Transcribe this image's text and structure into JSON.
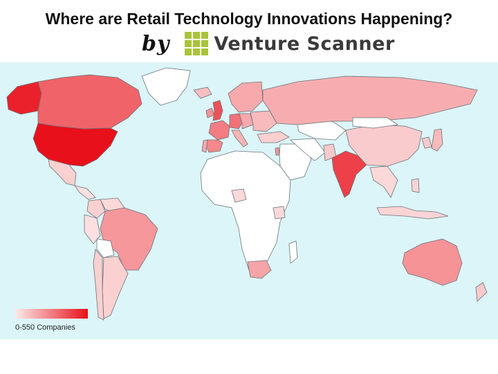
{
  "header": {
    "title": "Where are Retail Technology Innovations Happening?",
    "by": "by",
    "brand": "Venture Scanner"
  },
  "legend": {
    "label": "0-550 Companies",
    "low_color": "#fdeaea",
    "high_color": "#e8101a"
  },
  "colors": {
    "ocean": "#dcf5f8",
    "no_data": "#ffffff",
    "brand_green": "#a8c43b"
  },
  "map": {
    "regions": [
      {
        "name": "Greenland",
        "intensity": 0.0
      },
      {
        "name": "Alaska",
        "intensity": 0.92
      },
      {
        "name": "Canada",
        "intensity": 0.62
      },
      {
        "name": "United States",
        "intensity": 1.0
      },
      {
        "name": "Mexico",
        "intensity": 0.12
      },
      {
        "name": "Central America",
        "intensity": 0.05
      },
      {
        "name": "Colombia",
        "intensity": 0.12
      },
      {
        "name": "Venezuela",
        "intensity": 0.08
      },
      {
        "name": "Peru",
        "intensity": 0.05
      },
      {
        "name": "Brazil",
        "intensity": 0.38
      },
      {
        "name": "Bolivia",
        "intensity": 0.0
      },
      {
        "name": "Argentina",
        "intensity": 0.12
      },
      {
        "name": "Chile",
        "intensity": 0.12
      },
      {
        "name": "United Kingdom",
        "intensity": 0.7
      },
      {
        "name": "Ireland",
        "intensity": 0.4
      },
      {
        "name": "Iceland",
        "intensity": 0.2
      },
      {
        "name": "Scandinavia",
        "intensity": 0.3
      },
      {
        "name": "France",
        "intensity": 0.5
      },
      {
        "name": "Spain",
        "intensity": 0.45
      },
      {
        "name": "Portugal",
        "intensity": 0.3
      },
      {
        "name": "Germany",
        "intensity": 0.55
      },
      {
        "name": "Italy",
        "intensity": 0.25
      },
      {
        "name": "Central Europe",
        "intensity": 0.3
      },
      {
        "name": "Eastern Europe",
        "intensity": 0.22
      },
      {
        "name": "Russia",
        "intensity": 0.28
      },
      {
        "name": "Turkey",
        "intensity": 0.12
      },
      {
        "name": "Middle East",
        "intensity": 0.0
      },
      {
        "name": "Israel",
        "intensity": 0.4
      },
      {
        "name": "Iran",
        "intensity": 0.0
      },
      {
        "name": "Central Asia",
        "intensity": 0.0
      },
      {
        "name": "Pakistan",
        "intensity": 0.15
      },
      {
        "name": "India",
        "intensity": 0.78
      },
      {
        "name": "China",
        "intensity": 0.14
      },
      {
        "name": "Mongolia",
        "intensity": 0.0
      },
      {
        "name": "Japan",
        "intensity": 0.22
      },
      {
        "name": "Korea",
        "intensity": 0.15
      },
      {
        "name": "Southeast Asia",
        "intensity": 0.08
      },
      {
        "name": "Indonesia",
        "intensity": 0.1
      },
      {
        "name": "Philippines",
        "intensity": 0.1
      },
      {
        "name": "Australia",
        "intensity": 0.4
      },
      {
        "name": "New Zealand",
        "intensity": 0.15
      },
      {
        "name": "Africa",
        "intensity": 0.0
      },
      {
        "name": "Nigeria",
        "intensity": 0.08
      },
      {
        "name": "Kenya",
        "intensity": 0.08
      },
      {
        "name": "South Africa",
        "intensity": 0.32
      },
      {
        "name": "Madagascar",
        "intensity": 0.0
      }
    ]
  }
}
